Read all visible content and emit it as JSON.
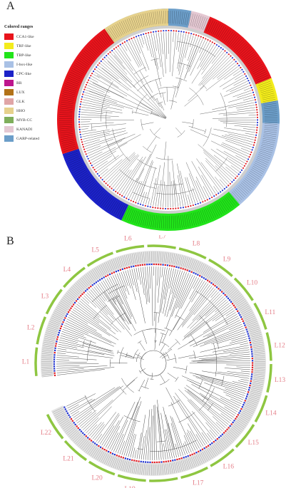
{
  "panel_a": {
    "letter": "A",
    "legend": {
      "title": "Colored ranges",
      "items": [
        {
          "label": "CCA1-like",
          "color": "#e8141c"
        },
        {
          "label": "TRF-like",
          "color": "#f3ec1c"
        },
        {
          "label": "TBP-like",
          "color": "#21e41a"
        },
        {
          "label": "I-box-like",
          "color": "#a9c1e5"
        },
        {
          "label": "CPC-like",
          "color": "#1c22c8"
        },
        {
          "label": "RR",
          "color": "#bd168d"
        },
        {
          "label": "LUX",
          "color": "#b27218"
        },
        {
          "label": "GLK",
          "color": "#e0a5a6"
        },
        {
          "label": "HHO",
          "color": "#e6d18c"
        },
        {
          "label": "MYB-CC",
          "color": "#7fae5b"
        },
        {
          "label": "KANADI",
          "color": "#e4c8d2"
        },
        {
          "label": "GARP-related",
          "color": "#6c9ec9"
        }
      ]
    },
    "ring_segments": [
      {
        "group": "LUX",
        "color": "#b27218",
        "span": [
          -80,
          -63
        ]
      },
      {
        "group": "RR",
        "color": "#bd168d",
        "span": [
          -63,
          -38
        ]
      },
      {
        "group": "MYB-CC",
        "color": "#7fae5b",
        "span": [
          -38,
          -22
        ]
      },
      {
        "group": "GARP-related",
        "color": "#6c9ec9",
        "span": [
          -22,
          12
        ]
      },
      {
        "group": "KANADI",
        "color": "#e4c8d2",
        "span": [
          12,
          22
        ]
      },
      {
        "group": "CCA1-like",
        "color": "#e8141c",
        "span": [
          22,
          68
        ]
      },
      {
        "group": "TRF-like",
        "color": "#f3ec1c",
        "span": [
          68,
          80
        ]
      },
      {
        "group": "GARP-related",
        "color": "#6c9ec9",
        "span": [
          80,
          92
        ]
      },
      {
        "group": "I-box-like",
        "color": "#a9c1e5",
        "span": [
          92,
          140
        ]
      },
      {
        "group": "TBP-like",
        "color": "#21e41a",
        "span": [
          140,
          205
        ]
      },
      {
        "group": "CPC-like",
        "color": "#1c22c8",
        "span": [
          205,
          252
        ]
      },
      {
        "group": "CCA1-like",
        "color": "#e8141c",
        "span": [
          252,
          325
        ]
      },
      {
        "group": "HHO",
        "color": "#e6d18c",
        "span": [
          325,
          360
        ]
      }
    ]
  },
  "panel_b": {
    "letter": "B",
    "clades": [
      "L1",
      "L2",
      "L3",
      "L4",
      "L5",
      "L6",
      "L7",
      "L8",
      "L9",
      "L10",
      "L11",
      "L12",
      "L13",
      "L14",
      "L15",
      "L16",
      "L17",
      "L18",
      "L19",
      "L20",
      "L21",
      "L22"
    ],
    "ring_color": "#8ec641",
    "label_color": "#e5808a",
    "marker_colors": {
      "red": "#e11b22",
      "blue": "#2234d2"
    }
  }
}
